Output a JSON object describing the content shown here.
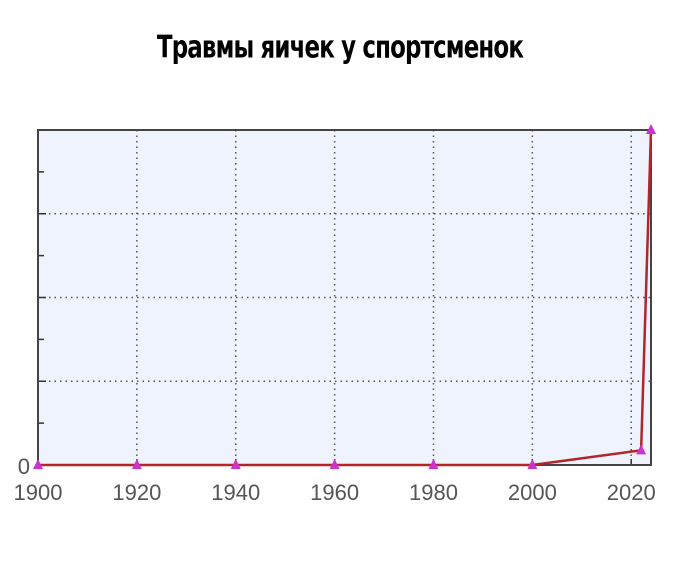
{
  "chart_data": {
    "type": "line",
    "title": "Травмы яичек у спортсменок",
    "x": [
      1900,
      1920,
      1940,
      1960,
      1980,
      2000,
      2022,
      2024
    ],
    "values": [
      0,
      0,
      0,
      0,
      0,
      0,
      0.35,
      8
    ],
    "color": "#b3242b",
    "marker_color": "#cc33cc",
    "xlim": [
      1900,
      2024
    ],
    "xticks": [
      1900,
      1920,
      1940,
      1960,
      1980,
      2000,
      2020
    ],
    "ylim": [
      0,
      8
    ],
    "yticks": [
      0
    ],
    "ygrid": [
      2,
      4,
      6
    ],
    "yminor": [
      1,
      3,
      5,
      7
    ],
    "grid": true,
    "background": "#eef3fd"
  }
}
